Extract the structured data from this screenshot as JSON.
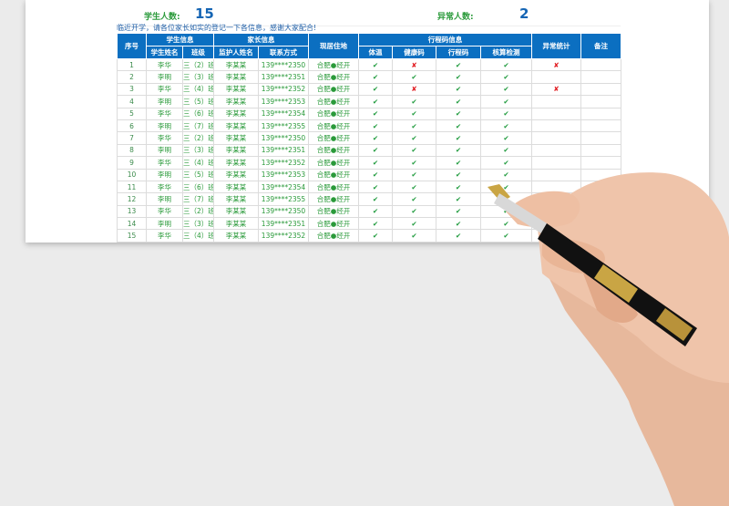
{
  "summary": {
    "students_label": "学生人数:",
    "students_count": "15",
    "abnormal_label": "异常人数:",
    "abnormal_count": "2"
  },
  "notice": "临近开学，请各位家长如实的登记一下各信息，感谢大家配合!",
  "headers": {
    "index": "序号",
    "student_info": "学生信息",
    "parent_info": "家长信息",
    "residence": "现居住地",
    "trip_info": "行程码信息",
    "abnormal": "异常统计",
    "remarks": "备注",
    "student_name": "学生姓名",
    "class": "班级",
    "guardian": "监护人姓名",
    "contact": "联系方式",
    "temperature": "体温",
    "health_code": "健康码",
    "trip_code": "行程码",
    "nucleic_test": "核算检测"
  },
  "colors": {
    "header_bg": "#0b6fc1",
    "check": "#1e9a3c",
    "cross": "#e0161b"
  },
  "rows": [
    {
      "no": "1",
      "name": "李华",
      "class": "三（2）班",
      "guardian": "李某某",
      "phone": "139****2350",
      "addr": "合肥●经开",
      "temp": "✔",
      "health": "✘",
      "trip": "✔",
      "test": "✔",
      "abn": "✘",
      "note": ""
    },
    {
      "no": "2",
      "name": "李明",
      "class": "三（3）班",
      "guardian": "李某某",
      "phone": "139****2351",
      "addr": "合肥●经开",
      "temp": "✔",
      "health": "✔",
      "trip": "✔",
      "test": "✔",
      "abn": "",
      "note": ""
    },
    {
      "no": "3",
      "name": "李华",
      "class": "三（4）班",
      "guardian": "李某某",
      "phone": "139****2352",
      "addr": "合肥●经开",
      "temp": "✔",
      "health": "✘",
      "trip": "✔",
      "test": "✔",
      "abn": "✘",
      "note": ""
    },
    {
      "no": "4",
      "name": "李明",
      "class": "三（5）班",
      "guardian": "李某某",
      "phone": "139****2353",
      "addr": "合肥●经开",
      "temp": "✔",
      "health": "✔",
      "trip": "✔",
      "test": "✔",
      "abn": "",
      "note": ""
    },
    {
      "no": "5",
      "name": "李华",
      "class": "三（6）班",
      "guardian": "李某某",
      "phone": "139****2354",
      "addr": "合肥●经开",
      "temp": "✔",
      "health": "✔",
      "trip": "✔",
      "test": "✔",
      "abn": "",
      "note": ""
    },
    {
      "no": "6",
      "name": "李明",
      "class": "三（7）班",
      "guardian": "李某某",
      "phone": "139****2355",
      "addr": "合肥●经开",
      "temp": "✔",
      "health": "✔",
      "trip": "✔",
      "test": "✔",
      "abn": "",
      "note": ""
    },
    {
      "no": "7",
      "name": "李华",
      "class": "三（2）班",
      "guardian": "李某某",
      "phone": "139****2350",
      "addr": "合肥●经开",
      "temp": "✔",
      "health": "✔",
      "trip": "✔",
      "test": "✔",
      "abn": "",
      "note": ""
    },
    {
      "no": "8",
      "name": "李明",
      "class": "三（3）班",
      "guardian": "李某某",
      "phone": "139****2351",
      "addr": "合肥●经开",
      "temp": "✔",
      "health": "✔",
      "trip": "✔",
      "test": "✔",
      "abn": "",
      "note": ""
    },
    {
      "no": "9",
      "name": "李华",
      "class": "三（4）班",
      "guardian": "李某某",
      "phone": "139****2352",
      "addr": "合肥●经开",
      "temp": "✔",
      "health": "✔",
      "trip": "✔",
      "test": "✔",
      "abn": "",
      "note": ""
    },
    {
      "no": "10",
      "name": "李明",
      "class": "三（5）班",
      "guardian": "李某某",
      "phone": "139****2353",
      "addr": "合肥●经开",
      "temp": "✔",
      "health": "✔",
      "trip": "✔",
      "test": "✔",
      "abn": "",
      "note": ""
    },
    {
      "no": "11",
      "name": "李华",
      "class": "三（6）班",
      "guardian": "李某某",
      "phone": "139****2354",
      "addr": "合肥●经开",
      "temp": "✔",
      "health": "✔",
      "trip": "✔",
      "test": "✔",
      "abn": "",
      "note": ""
    },
    {
      "no": "12",
      "name": "李明",
      "class": "三（7）班",
      "guardian": "李某某",
      "phone": "139****2355",
      "addr": "合肥●经开",
      "temp": "✔",
      "health": "✔",
      "trip": "✔",
      "test": "✔",
      "abn": "",
      "note": ""
    },
    {
      "no": "13",
      "name": "李华",
      "class": "三（2）班",
      "guardian": "李某某",
      "phone": "139****2350",
      "addr": "合肥●经开",
      "temp": "✔",
      "health": "✔",
      "trip": "✔",
      "test": "✔",
      "abn": "",
      "note": ""
    },
    {
      "no": "14",
      "name": "李明",
      "class": "三（3）班",
      "guardian": "李某某",
      "phone": "139****2351",
      "addr": "合肥●经开",
      "temp": "✔",
      "health": "✔",
      "trip": "✔",
      "test": "✔",
      "abn": "",
      "note": ""
    },
    {
      "no": "15",
      "name": "李华",
      "class": "三（4）班",
      "guardian": "李某某",
      "phone": "139****2352",
      "addr": "合肥●经开",
      "temp": "✔",
      "health": "✔",
      "trip": "✔",
      "test": "✔",
      "abn": "",
      "note": ""
    }
  ]
}
